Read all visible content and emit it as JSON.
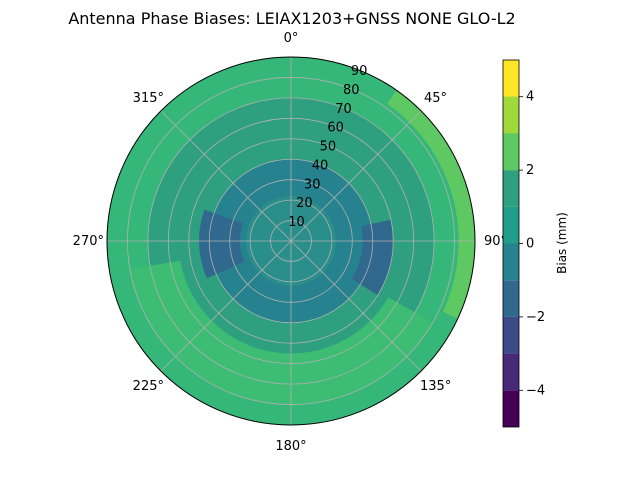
{
  "chart_data": {
    "type": "heatmap",
    "subtype": "polar-contour",
    "title": "Antenna Phase Biases: LEIAX1203+GNSS  NONE GLO-L2",
    "azimuth_labels": [
      "0°",
      "45°",
      "90°",
      "135°",
      "180°",
      "225°",
      "270°",
      "315°"
    ],
    "azimuth_direction": "clockwise",
    "azimuth_zero": "top",
    "radial_axis": {
      "quantity": "zenith angle (deg)",
      "range": [
        0,
        90
      ],
      "ticks": [
        "10",
        "20",
        "30",
        "40",
        "50",
        "60",
        "70",
        "80",
        "90"
      ]
    },
    "grid": true,
    "colorbar": {
      "label": "Bias (mm)",
      "range": [
        -5,
        5
      ],
      "ticks": [
        "−4",
        "−2",
        "0",
        "2",
        "4"
      ],
      "levels": [
        -5,
        -4.5,
        -4,
        -3,
        -2,
        -1.5,
        -1,
        0,
        0.5,
        1,
        2,
        3,
        4,
        4.5,
        5
      ],
      "colors": [
        "#440154",
        "#482878",
        "#3e4989",
        "#31688e",
        "#26828e",
        "#1f9e89",
        "#35b779",
        "#6ece58",
        "#b5de2b",
        "#fde725",
        "#46327e",
        "#365c8d",
        "#277f8e",
        "#1fa187",
        "#4ac16d",
        "#9fda3a",
        "#d8e219"
      ],
      "placement": "right"
    },
    "regions": [
      {
        "name": "outer-ring",
        "zenith_range": [
          70,
          90
        ],
        "bias_mm": 1.5
      },
      {
        "name": "mid-ring",
        "zenith_range": [
          40,
          70
        ],
        "bias_mm": 1.0
      },
      {
        "name": "inner-ring",
        "zenith_range": [
          25,
          40
        ],
        "bias_mm": 0.5
      },
      {
        "name": "center",
        "zenith_range": [
          0,
          25
        ],
        "bias_mm": 0.5
      },
      {
        "name": "west-lobe",
        "azimuth_deg": 268,
        "zenith_range": [
          25,
          45
        ],
        "bias_mm": -0.5
      },
      {
        "name": "east-lobe",
        "azimuth_deg": 100,
        "zenith_range": [
          35,
          50
        ],
        "bias_mm": -0.5
      },
      {
        "name": "south-band",
        "azimuth_deg": 190,
        "zenith_range": [
          55,
          80
        ],
        "bias_mm": 1.5
      },
      {
        "name": "rim-east",
        "azimuth_deg": 75,
        "zenith_range": [
          82,
          90
        ],
        "bias_mm": 2.5
      }
    ]
  }
}
